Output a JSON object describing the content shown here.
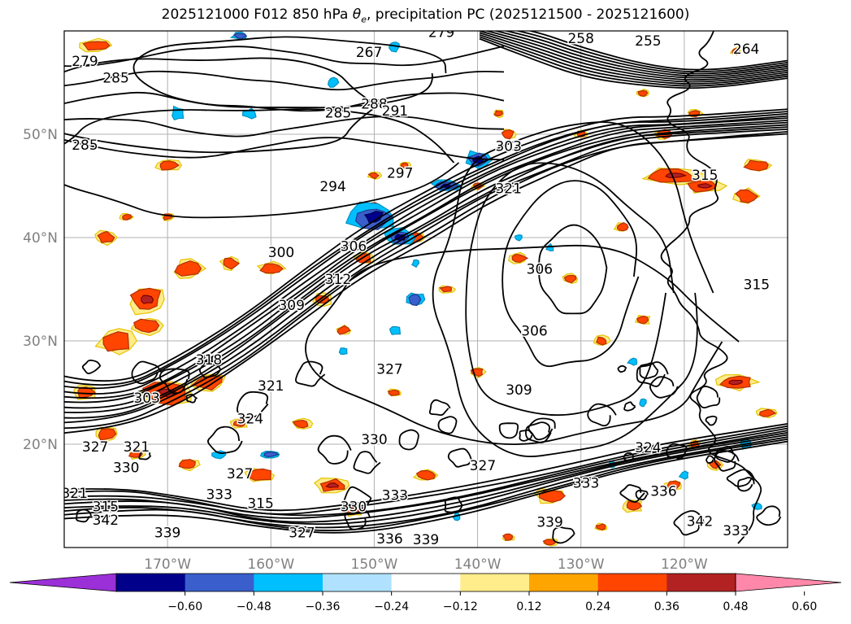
{
  "title_prefix": "2025121000 F012 850 hPa",
  "title_symbol": "θ",
  "title_symbol_sub": "e",
  "title_suffix": ", precipitation PC (2025121500 - 2025121600)",
  "chart_data": {
    "type": "contour",
    "title": "2025121000 F012 850 hPa θe, precipitation PC (2025121500 - 2025121600)",
    "map": {
      "lon_range": [
        -180,
        -110
      ],
      "lat_range": [
        10,
        60
      ],
      "grid": true,
      "lon_ticks": [
        {
          "value": -170,
          "label": "170°W"
        },
        {
          "value": -160,
          "label": "160°W"
        },
        {
          "value": -150,
          "label": "150°W"
        },
        {
          "value": -140,
          "label": "140°W"
        },
        {
          "value": -130,
          "label": "130°W"
        },
        {
          "value": -120,
          "label": "120°W"
        }
      ],
      "lat_ticks": [
        {
          "value": 50,
          "label": "50°N"
        },
        {
          "value": 40,
          "label": "40°N"
        },
        {
          "value": 30,
          "label": "30°N"
        },
        {
          "value": 20,
          "label": "20°N"
        }
      ]
    },
    "theta_e_contours": {
      "color": "#000000",
      "labels": [
        {
          "text": "279",
          "lon": -178,
          "lat": 56.6
        },
        {
          "text": "279",
          "lon": -143.5,
          "lat": 59.4
        },
        {
          "text": "285",
          "lon": -175,
          "lat": 55
        },
        {
          "text": "285",
          "lon": -153.5,
          "lat": 51.6
        },
        {
          "text": "285",
          "lon": -178,
          "lat": 48.5
        },
        {
          "text": "288",
          "lon": -150,
          "lat": 52.5
        },
        {
          "text": "291",
          "lon": -148,
          "lat": 51.8
        },
        {
          "text": "294",
          "lon": -154,
          "lat": 44.5
        },
        {
          "text": "297",
          "lon": -147.5,
          "lat": 45.8
        },
        {
          "text": "300",
          "lon": -159,
          "lat": 38.1
        },
        {
          "text": "303",
          "lon": -137,
          "lat": 48.4
        },
        {
          "text": "303",
          "lon": -172,
          "lat": 24.0
        },
        {
          "text": "306",
          "lon": -152,
          "lat": 38.7
        },
        {
          "text": "306",
          "lon": -134,
          "lat": 36.5
        },
        {
          "text": "306",
          "lon": -134.5,
          "lat": 30.5
        },
        {
          "text": "309",
          "lon": -158,
          "lat": 33.0
        },
        {
          "text": "309",
          "lon": -136,
          "lat": 24.8
        },
        {
          "text": "312",
          "lon": -153.5,
          "lat": 35.5
        },
        {
          "text": "315",
          "lon": -176,
          "lat": 13.5
        },
        {
          "text": "315",
          "lon": -161,
          "lat": 13.8
        },
        {
          "text": "315",
          "lon": -118,
          "lat": 45.6
        },
        {
          "text": "315",
          "lon": -113,
          "lat": 35.0
        },
        {
          "text": "318",
          "lon": -166,
          "lat": 27.7
        },
        {
          "text": "321",
          "lon": -137,
          "lat": 44.3
        },
        {
          "text": "321",
          "lon": -179,
          "lat": 14.8
        },
        {
          "text": "321",
          "lon": -173,
          "lat": 19.3
        },
        {
          "text": "321",
          "lon": -160,
          "lat": 25.2
        },
        {
          "text": "324",
          "lon": -162,
          "lat": 22.0
        },
        {
          "text": "324",
          "lon": -123.5,
          "lat": 19.2
        },
        {
          "text": "327",
          "lon": -177,
          "lat": 19.3
        },
        {
          "text": "327",
          "lon": -163,
          "lat": 16.7
        },
        {
          "text": "327",
          "lon": -148.5,
          "lat": 26.8
        },
        {
          "text": "327",
          "lon": -139.5,
          "lat": 17.5
        },
        {
          "text": "327",
          "lon": -157,
          "lat": 11.0
        },
        {
          "text": "330",
          "lon": -174,
          "lat": 17.3
        },
        {
          "text": "330",
          "lon": -152,
          "lat": 13.5
        },
        {
          "text": "330",
          "lon": -150,
          "lat": 20.0
        },
        {
          "text": "333",
          "lon": -165,
          "lat": 14.7
        },
        {
          "text": "333",
          "lon": -148,
          "lat": 14.6
        },
        {
          "text": "333",
          "lon": -129.5,
          "lat": 15.8
        },
        {
          "text": "333",
          "lon": -115,
          "lat": 11.2
        },
        {
          "text": "336",
          "lon": -148.5,
          "lat": 10.4
        },
        {
          "text": "336",
          "lon": -122,
          "lat": 15.0
        },
        {
          "text": "339",
          "lon": -145,
          "lat": 10.3
        },
        {
          "text": "339",
          "lon": -133,
          "lat": 12.0
        },
        {
          "text": "339",
          "lon": -170,
          "lat": 11.0
        },
        {
          "text": "342",
          "lon": -176,
          "lat": 12.2
        },
        {
          "text": "342",
          "lon": -118.5,
          "lat": 12.1
        },
        {
          "text": "255",
          "lon": -123.5,
          "lat": 58.6
        },
        {
          "text": "258",
          "lon": -130,
          "lat": 58.8
        },
        {
          "text": "264",
          "lon": -114,
          "lat": 57.8
        },
        {
          "text": "267",
          "lon": -150.5,
          "lat": 57.5
        }
      ]
    },
    "precip_pc": {
      "colorbar": {
        "orientation": "horizontal",
        "extend": "both",
        "boundaries": [
          -0.72,
          -0.6,
          -0.48,
          -0.36,
          -0.24,
          -0.12,
          0.12,
          0.24,
          0.36,
          0.48,
          0.6,
          0.72
        ],
        "tick_values": [
          -0.6,
          -0.48,
          -0.36,
          -0.24,
          -0.12,
          0.12,
          0.24,
          0.36,
          0.48,
          0.6
        ],
        "tick_labels": [
          "−0.60",
          "−0.48",
          "−0.36",
          "−0.24",
          "−0.12",
          "0.12",
          "0.24",
          "0.36",
          "0.48",
          "0.60"
        ],
        "colors": [
          "#9b30d8",
          "#00008b",
          "#3a5fcd",
          "#00bfff",
          "#b0e2ff",
          "#ffffff",
          "#ffec8b",
          "#ffa500",
          "#ff4500",
          "#b22222",
          "#ff88aa"
        ],
        "under_color": "#9b30d8",
        "over_color": "#ff88aa"
      },
      "regions": [
        {
          "sign": "positive",
          "level": 0.36,
          "lon_range": [
            -178,
            -172
          ],
          "lat_range": [
            29,
            33
          ]
        },
        {
          "sign": "positive",
          "level": 0.36,
          "lon_range": [
            -176,
            -168
          ],
          "lat_range": [
            34,
            38
          ]
        },
        {
          "sign": "positive",
          "level": 0.36,
          "lon_range": [
            -174,
            -164
          ],
          "lat_range": [
            21,
            27
          ]
        },
        {
          "sign": "positive",
          "level": 0.36,
          "lon_range": [
            -121,
            -114
          ],
          "lat_range": [
            43,
            47
          ]
        },
        {
          "sign": "negative",
          "level": -0.48,
          "lon_range": [
            -152,
            -144
          ],
          "lat_range": [
            37,
            43
          ]
        },
        {
          "sign": "negative",
          "level": -0.48,
          "lon_range": [
            -141,
            -138
          ],
          "lat_range": [
            46,
            48
          ]
        }
      ]
    }
  }
}
